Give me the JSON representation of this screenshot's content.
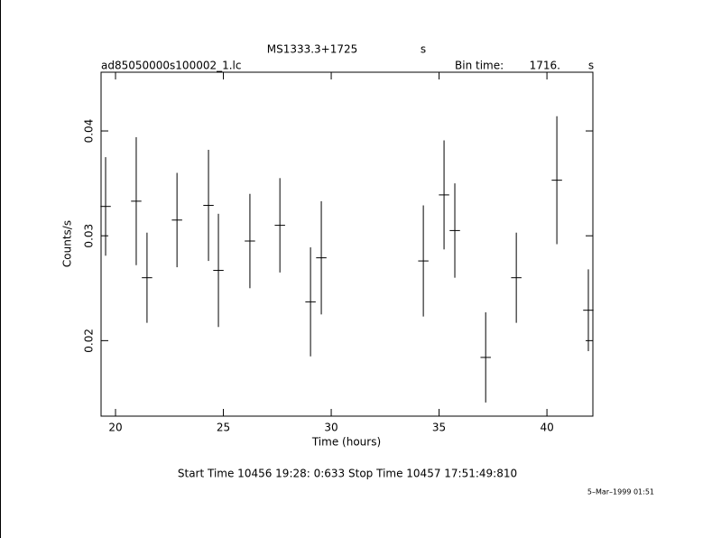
{
  "chart_data": {
    "type": "errorbar",
    "title": "MS1333.3+1725",
    "title_unit": "s",
    "file_label": "ad85050000s100002_1.lc",
    "bin_label": "Bin time:",
    "bin_value": "1716.",
    "bin_unit": "s",
    "xlabel": "Time (hours)",
    "ylabel": "Counts/s",
    "footer": "Start Time 10456 19:28: 0:633    Stop Time 10457 17:51:49:810",
    "date": "5–Mar–1999 01:51",
    "color": "#000000",
    "xlim": [
      19.33,
      42.13
    ],
    "xticks": [
      20,
      25,
      30,
      35,
      40
    ],
    "ylim": [
      0.0128,
      0.0456
    ],
    "yticks": [
      0.02,
      0.03,
      0.04
    ],
    "xerr": 0.24,
    "x": [
      19.54,
      20.96,
      21.46,
      22.85,
      24.31,
      24.77,
      26.23,
      27.62,
      29.04,
      29.54,
      34.27,
      35.23,
      35.73,
      37.16,
      38.58,
      40.46,
      41.92
    ],
    "series": [
      {
        "values": [
          0.0328,
          0.0333,
          0.026,
          0.0315,
          0.0329,
          0.0267,
          0.0295,
          0.031,
          0.0237,
          0.0279,
          0.0276,
          0.0339,
          0.0305,
          0.0184,
          0.026,
          0.0353,
          0.0229
        ],
        "errors": [
          0.0047,
          0.0061,
          0.0043,
          0.0045,
          0.0053,
          0.0054,
          0.0045,
          0.0045,
          0.0052,
          0.0054,
          0.0053,
          0.0052,
          0.0045,
          0.0043,
          0.0043,
          0.0061,
          0.0039
        ]
      }
    ]
  }
}
